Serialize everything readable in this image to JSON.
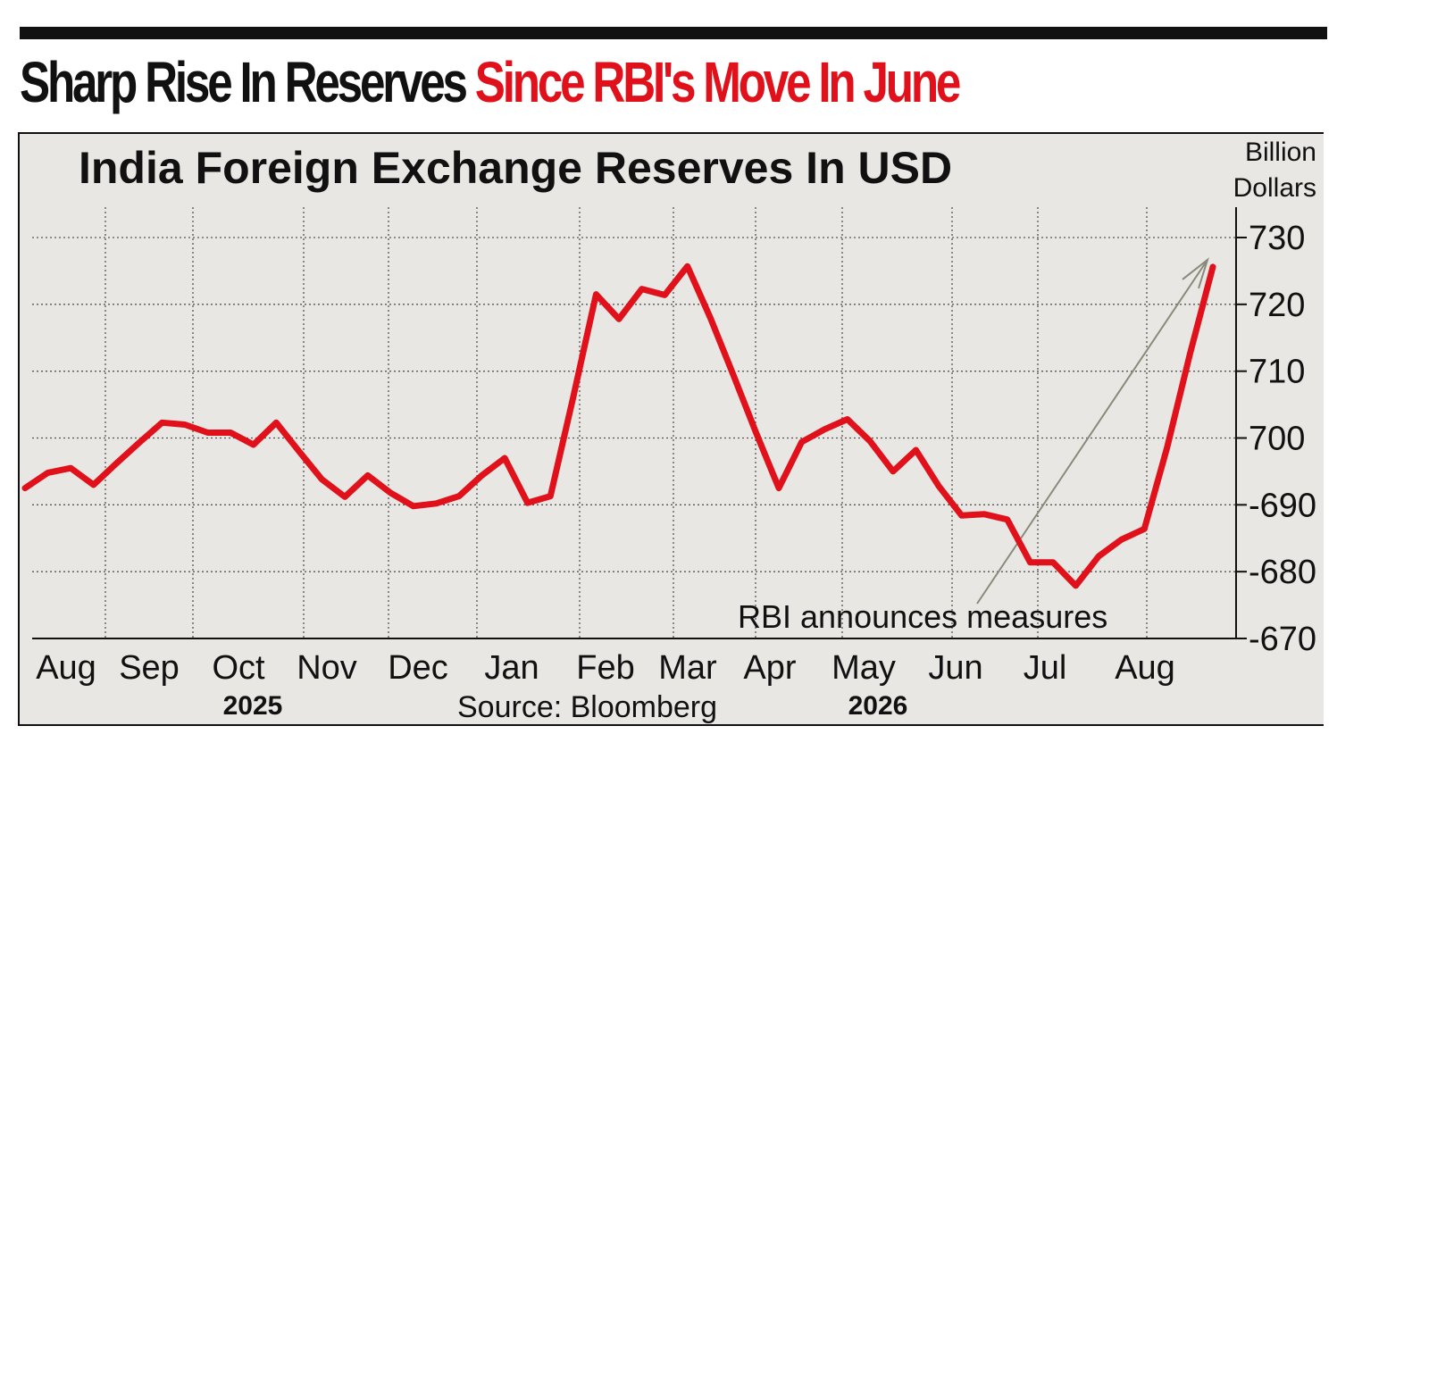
{
  "headline": {
    "part1": "Sharp Rise In Reserves",
    "part2": "Since RBI's Move In June"
  },
  "colors": {
    "accent": "#e0111b",
    "panel_bg": "#e8e7e3",
    "grid": "#555555"
  },
  "source": "Source: Bloomberg",
  "chart_data": {
    "type": "line",
    "title": "India Foreign Exchange Reserves In USD",
    "ylabel_line1": "Billion",
    "ylabel_line2": "Dollars",
    "ylim": [
      670,
      730
    ],
    "yticks": [
      {
        "value": 730,
        "label": "730"
      },
      {
        "value": 720,
        "label": "720"
      },
      {
        "value": 710,
        "label": "710"
      },
      {
        "value": 700,
        "label": "700"
      },
      {
        "value": 690,
        "label": "-690"
      },
      {
        "value": 680,
        "label": "-680"
      },
      {
        "value": 670,
        "label": "-670"
      }
    ],
    "grid": true,
    "months": [
      "Aug",
      "Sep",
      "Oct",
      "Nov",
      "Dec",
      "Jan",
      "Feb",
      "Mar",
      "Apr",
      "May",
      "Jun",
      "Jul",
      "Aug"
    ],
    "years": [
      {
        "label": "2025",
        "under_month": 2
      },
      {
        "label": "2026",
        "under_month": 9
      }
    ],
    "series": [
      {
        "color": "#e0111b",
        "values": [
          692.5,
          694.8,
          695.5,
          693.0,
          696.2,
          699.3,
          702.3,
          702.0,
          700.8,
          700.8,
          699.0,
          702.3,
          698.0,
          693.8,
          691.2,
          694.4,
          691.8,
          689.8,
          690.2,
          691.3,
          694.4,
          697.0,
          690.3,
          691.3,
          706.1,
          721.5,
          717.8,
          722.3,
          721.4,
          725.7,
          718.0,
          709.5,
          700.8,
          692.5,
          699.4,
          701.3,
          702.8,
          699.5,
          695.0,
          698.2,
          692.8,
          688.4,
          688.6,
          687.8,
          681.4,
          681.4,
          677.9,
          682.3,
          684.8,
          686.4,
          698.6,
          712.6,
          725.6
        ]
      }
    ],
    "annotations": [
      {
        "text": "RBI announces measures",
        "arrow_to_value": 725.6
      }
    ]
  }
}
